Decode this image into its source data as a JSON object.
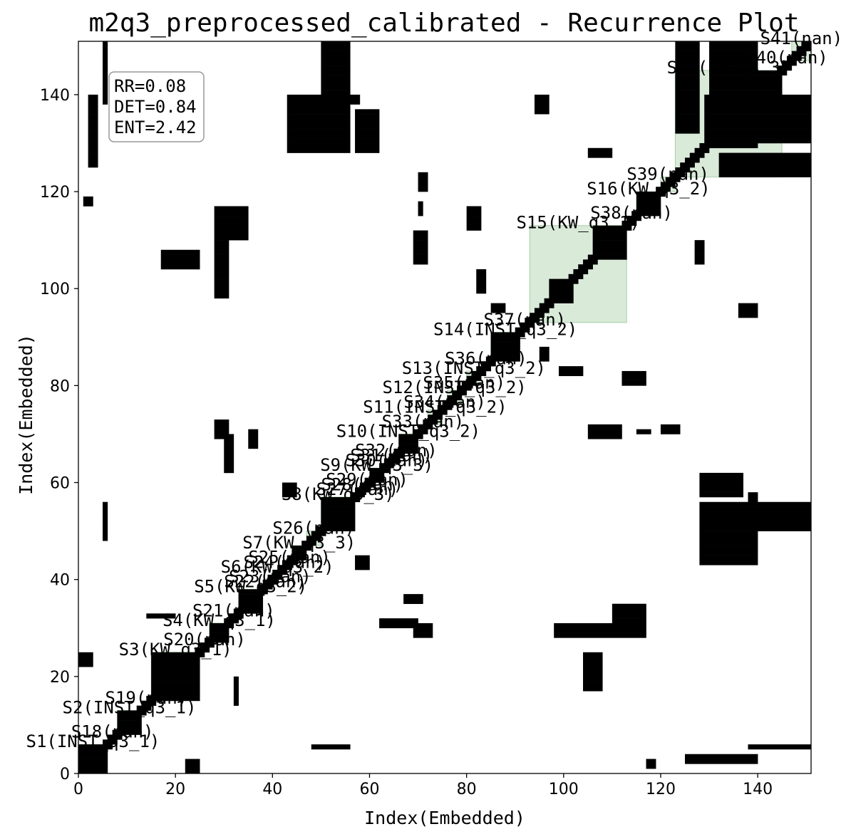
{
  "chart_data": {
    "type": "heatmap",
    "title": "m2q3_preprocessed_calibrated - Recurrence Plot",
    "xlabel": "Index(Embedded)",
    "ylabel": "Index(Embedded)",
    "n": 151,
    "xlim": [
      0,
      151
    ],
    "ylim": [
      0,
      151
    ],
    "xticks": [
      0,
      20,
      40,
      60,
      80,
      100,
      120,
      140
    ],
    "yticks": [
      0,
      20,
      40,
      60,
      80,
      100,
      120,
      140
    ],
    "grid": false,
    "colors": {
      "recurrence": "#000000",
      "segment_fill": "#2e8b2e",
      "background": "#ffffff"
    },
    "stats": {
      "rr": "RR=0.08",
      "det": "DET=0.84",
      "ent": "ENT=2.42"
    },
    "segments": [
      {
        "label": "S1(INST_q3_1)",
        "start": 0,
        "end": 6
      },
      {
        "label": "S18(nan)",
        "start": 6,
        "end": 8
      },
      {
        "label": "S2(INST_q3_1)",
        "start": 8,
        "end": 13
      },
      {
        "label": "S19(nan)",
        "start": 13,
        "end": 15
      },
      {
        "label": "S3(KW_q3_1)",
        "start": 15,
        "end": 25
      },
      {
        "label": "S20(nan)",
        "start": 25,
        "end": 27
      },
      {
        "label": "S4(KW_q3_1)",
        "start": 27,
        "end": 31
      },
      {
        "label": "S21(nan)",
        "start": 31,
        "end": 33
      },
      {
        "label": "S5(KW_q3_2)",
        "start": 33,
        "end": 38
      },
      {
        "label": "S22(nan)",
        "start": 38,
        "end": 39
      },
      {
        "label": "S23(nan)",
        "start": 39,
        "end": 40
      },
      {
        "label": "S6(KW_q3_2)",
        "start": 40,
        "end": 42
      },
      {
        "label": "S24(nan)",
        "start": 42,
        "end": 43
      },
      {
        "label": "S25(nan)",
        "start": 43,
        "end": 44
      },
      {
        "label": "S7(KW_q3_3)",
        "start": 44,
        "end": 47
      },
      {
        "label": "S26(nan)",
        "start": 47,
        "end": 50
      },
      {
        "label": "S8(KW_q3_3)",
        "start": 50,
        "end": 57
      },
      {
        "label": "S27(nan)",
        "start": 57,
        "end": 58
      },
      {
        "label": "S28(nan)",
        "start": 58,
        "end": 59
      },
      {
        "label": "S29(nan)",
        "start": 59,
        "end": 60
      },
      {
        "label": "S9(KW_q3_3)",
        "start": 60,
        "end": 63
      },
      {
        "label": "S30(nan)",
        "start": 63,
        "end": 64
      },
      {
        "label": "S31(nan)",
        "start": 64,
        "end": 65
      },
      {
        "label": "S32(nan)",
        "start": 65,
        "end": 66
      },
      {
        "label": "S10(INST_q3_2)",
        "start": 66,
        "end": 70
      },
      {
        "label": "S33(nan)",
        "start": 70,
        "end": 72
      },
      {
        "label": "S11(INST_q3_2)",
        "start": 72,
        "end": 75
      },
      {
        "label": "S34(nan)",
        "start": 75,
        "end": 76
      },
      {
        "label": "S12(INST_q3_2)",
        "start": 76,
        "end": 79
      },
      {
        "label": "S35(nan)",
        "start": 79,
        "end": 80
      },
      {
        "label": "S13(INST_q3_2)",
        "start": 80,
        "end": 83
      },
      {
        "label": "S36(nan)",
        "start": 83,
        "end": 85
      },
      {
        "label": "S14(INST_q3_2)",
        "start": 85,
        "end": 91
      },
      {
        "label": "S37(nan)",
        "start": 91,
        "end": 93
      },
      {
        "label": "S15(KW_q3_1)",
        "start": 93,
        "end": 113
      },
      {
        "label": "S38(nan)",
        "start": 113,
        "end": 115
      },
      {
        "label": "S16(KW_q3_2)",
        "start": 115,
        "end": 120
      },
      {
        "label": "S39(nan)",
        "start": 120,
        "end": 123
      },
      {
        "label": "S17(KW_q3_3)",
        "start": 123,
        "end": 145
      },
      {
        "label": "S40(nan)",
        "start": 145,
        "end": 147
      },
      {
        "label": "S41(nan)",
        "start": 147,
        "end": 151
      }
    ],
    "blocks": [
      [
        0,
        6,
        0,
        6
      ],
      [
        8,
        13,
        8,
        13
      ],
      [
        15,
        25,
        15,
        25
      ],
      [
        27,
        31,
        27,
        31
      ],
      [
        33,
        38,
        33,
        38
      ],
      [
        44,
        47,
        44,
        47
      ],
      [
        50,
        57,
        50,
        57
      ],
      [
        60,
        63,
        60,
        63
      ],
      [
        66,
        70,
        66,
        70
      ],
      [
        85,
        91,
        85,
        91
      ],
      [
        97,
        102,
        97,
        102
      ],
      [
        106,
        113,
        106,
        113
      ],
      [
        115,
        120,
        115,
        120
      ],
      [
        129,
        140,
        129,
        140
      ],
      [
        130,
        145,
        130,
        145
      ],
      [
        0,
        3,
        22,
        25
      ],
      [
        22,
        25,
        0,
        3
      ],
      [
        5,
        6,
        138,
        151
      ],
      [
        138,
        151,
        5,
        6
      ],
      [
        5,
        6,
        48,
        56
      ],
      [
        48,
        56,
        5,
        6
      ],
      [
        50,
        56,
        136,
        151
      ],
      [
        136,
        151,
        50,
        56
      ],
      [
        28,
        35,
        110,
        117
      ],
      [
        110,
        117,
        28,
        35
      ],
      [
        28,
        31,
        98,
        108
      ],
      [
        98,
        108,
        28,
        31
      ],
      [
        69,
        72,
        105,
        112
      ],
      [
        105,
        112,
        69,
        72
      ],
      [
        30,
        32,
        62,
        70
      ],
      [
        62,
        70,
        30,
        32
      ],
      [
        69,
        73,
        28,
        31
      ],
      [
        28,
        31,
        69,
        73
      ],
      [
        107,
        117,
        28,
        31
      ],
      [
        28,
        31,
        107,
        117
      ],
      [
        123,
        128,
        132,
        151
      ],
      [
        132,
        151,
        123,
        128
      ],
      [
        128,
        140,
        43,
        56
      ],
      [
        43,
        56,
        128,
        140
      ],
      [
        128,
        140,
        2,
        4
      ],
      [
        2,
        4,
        128,
        140
      ],
      [
        128,
        137,
        57,
        62
      ],
      [
        57,
        62,
        128,
        137
      ],
      [
        140,
        151,
        130,
        140
      ],
      [
        130,
        140,
        140,
        151
      ],
      [
        127,
        129,
        105,
        110
      ],
      [
        105,
        110,
        127,
        129
      ],
      [
        117,
        119,
        1,
        3
      ],
      [
        1,
        3,
        117,
        119
      ],
      [
        112,
        117,
        80,
        83
      ],
      [
        80,
        83,
        112,
        117
      ],
      [
        99,
        104,
        82,
        84
      ],
      [
        82,
        84,
        99,
        104
      ],
      [
        120,
        124,
        70,
        72
      ],
      [
        70,
        72,
        120,
        124
      ],
      [
        14,
        20,
        32,
        33
      ],
      [
        32,
        33,
        14,
        20
      ],
      [
        17,
        25,
        104,
        108
      ],
      [
        104,
        108,
        17,
        25
      ],
      [
        53,
        58,
        138,
        140
      ],
      [
        138,
        140,
        53,
        58
      ],
      [
        57,
        60,
        42,
        45
      ],
      [
        42,
        45,
        57,
        60
      ],
      [
        67,
        71,
        35,
        37
      ],
      [
        35,
        37,
        67,
        71
      ],
      [
        115,
        118,
        70,
        71
      ],
      [
        70,
        71,
        115,
        118
      ],
      [
        85,
        88,
        95,
        97
      ],
      [
        95,
        97,
        85,
        88
      ],
      [
        136,
        140,
        94,
        97
      ],
      [
        94,
        97,
        136,
        140
      ],
      [
        2,
        4,
        125,
        130
      ],
      [
        125,
        130,
        2,
        4
      ]
    ]
  }
}
